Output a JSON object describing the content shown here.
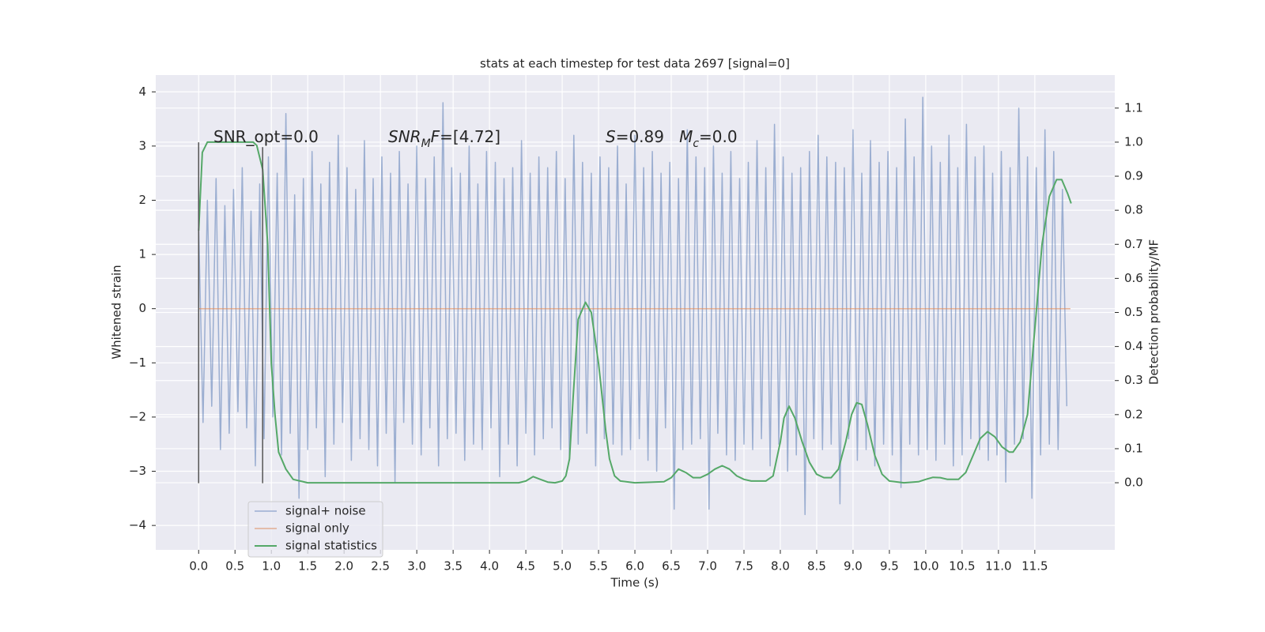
{
  "chart_data": {
    "type": "line",
    "title": "stats at each timestep for test data 2697 [signal=0]",
    "x_label": "Time (s)",
    "y_label": "Whitened strain",
    "y2_label": "Detection probability/MF",
    "xlim": [
      -0.59,
      12.6
    ],
    "ylim": [
      -4.45,
      4.31
    ],
    "y2lim": [
      -0.197,
      1.197
    ],
    "xticks": [
      {
        "value": 0,
        "label": "0.0"
      },
      0.5,
      {
        "value": 1,
        "label": "1.0"
      },
      1.5,
      {
        "value": 2,
        "label": "2.0"
      },
      2.5,
      {
        "value": 3,
        "label": "3.0"
      },
      3.5,
      {
        "value": 4,
        "label": "4.0"
      },
      4.5,
      {
        "value": 5,
        "label": "5.0"
      },
      5.5,
      {
        "value": 6,
        "label": "6.0"
      },
      6.5,
      {
        "value": 7,
        "label": "7.0"
      },
      7.5,
      {
        "value": 8,
        "label": "8.0"
      },
      8.5,
      {
        "value": 9,
        "label": "9.0"
      },
      9.5,
      {
        "value": 10,
        "label": "10.0"
      },
      10.5,
      {
        "value": 11,
        "label": "11.0"
      },
      11.5
    ],
    "yticks": [
      {
        "value": -4,
        "label": "−4"
      },
      {
        "value": -3,
        "label": "−3"
      },
      {
        "value": -2,
        "label": "−2"
      },
      {
        "value": -1,
        "label": "−1"
      },
      0,
      1,
      2,
      3,
      4
    ],
    "y2ticks": [
      {
        "value": 0,
        "label": "0.0"
      },
      0.1,
      0.2,
      0.3,
      0.4,
      0.5,
      0.6,
      0.7,
      0.8,
      0.9,
      {
        "value": 1,
        "label": "1.0"
      },
      1.1
    ],
    "grid": true,
    "legend": "lower left",
    "x": [
      0,
      0.06,
      0.12,
      0.18,
      0.24,
      0.3,
      0.36,
      0.42,
      0.48,
      0.54,
      0.6,
      0.66,
      0.72,
      0.78,
      0.84,
      0.9,
      0.96,
      1.02,
      1.08,
      1.14,
      1.2,
      1.26,
      1.32,
      1.38,
      1.44,
      1.5,
      1.56,
      1.62,
      1.68,
      1.74,
      1.8,
      1.86,
      1.92,
      1.98,
      2.04,
      2.1,
      2.16,
      2.22,
      2.28,
      2.34,
      2.4,
      2.46,
      2.52,
      2.58,
      2.64,
      2.7,
      2.76,
      2.82,
      2.88,
      2.94,
      3,
      3.06,
      3.12,
      3.18,
      3.24,
      3.3,
      3.36,
      3.42,
      3.48,
      3.54,
      3.6,
      3.66,
      3.72,
      3.78,
      3.84,
      3.9,
      3.96,
      4.02,
      4.08,
      4.14,
      4.2,
      4.26,
      4.32,
      4.38,
      4.44,
      4.5,
      4.56,
      4.62,
      4.68,
      4.74,
      4.8,
      4.86,
      4.92,
      4.98,
      5.04,
      5.1,
      5.16,
      5.22,
      5.28,
      5.34,
      5.4,
      5.46,
      5.52,
      5.58,
      5.64,
      5.7,
      5.76,
      5.82,
      5.88,
      5.94,
      6,
      6.06,
      6.12,
      6.18,
      6.24,
      6.3,
      6.36,
      6.42,
      6.48,
      6.54,
      6.6,
      6.66,
      6.72,
      6.78,
      6.84,
      6.9,
      6.96,
      7.02,
      7.08,
      7.14,
      7.2,
      7.26,
      7.32,
      7.38,
      7.44,
      7.5,
      7.56,
      7.62,
      7.68,
      7.74,
      7.8,
      7.86,
      7.92,
      7.98,
      8.04,
      8.1,
      8.16,
      8.22,
      8.28,
      8.34,
      8.4,
      8.46,
      8.52,
      8.58,
      8.64,
      8.7,
      8.76,
      8.82,
      8.88,
      8.94,
      9,
      9.06,
      9.12,
      9.18,
      9.24,
      9.3,
      9.36,
      9.42,
      9.48,
      9.54,
      9.6,
      9.66,
      9.72,
      9.78,
      9.84,
      9.9,
      9.96,
      10.02,
      10.08,
      10.14,
      10.2,
      10.26,
      10.32,
      10.38,
      10.44,
      10.5,
      10.56,
      10.62,
      10.68,
      10.74,
      10.8,
      10.86,
      10.92,
      10.98,
      11.04,
      11.1,
      11.16,
      11.22,
      11.28,
      11.34,
      11.4,
      11.46,
      11.52,
      11.58,
      11.64,
      11.7,
      11.76,
      11.82,
      11.88,
      11.94
    ],
    "series": [
      {
        "name": "signal+ noise",
        "color": "#4c72b0",
        "values": [
          1.5,
          -2.1,
          2.0,
          -1.8,
          2.4,
          -2.6,
          1.9,
          -2.3,
          2.2,
          -1.9,
          2.6,
          -2.2,
          1.8,
          -2.9,
          2.3,
          -2.4,
          2.8,
          -2.0,
          2.5,
          -2.7,
          3.6,
          -2.3,
          2.1,
          -3.5,
          2.4,
          -2.6,
          2.9,
          -2.2,
          2.3,
          -3.1,
          2.7,
          -2.5,
          3.2,
          -2.1,
          2.6,
          -2.8,
          2.2,
          -2.4,
          3.1,
          -2.6,
          2.4,
          -2.9,
          2.8,
          -2.3,
          2.5,
          -3.2,
          2.9,
          -2.1,
          2.3,
          -2.5,
          3.0,
          -2.7,
          2.4,
          -2.2,
          2.8,
          -2.9,
          3.8,
          -2.4,
          2.6,
          -2.3,
          2.5,
          -2.8,
          3.0,
          -2.5,
          2.3,
          -2.6,
          2.9,
          -2.2,
          2.7,
          -3.1,
          2.4,
          -2.5,
          2.6,
          -2.9,
          3.1,
          -2.3,
          2.5,
          -2.7,
          2.8,
          -2.4,
          2.6,
          -2.2,
          2.9,
          -2.6,
          2.4,
          -2.8,
          3.2,
          -2.5,
          2.7,
          -2.3,
          2.5,
          -2.9,
          2.8,
          -2.4,
          2.6,
          -2.5,
          3.0,
          -2.7,
          2.3,
          -2.6,
          3.2,
          -2.4,
          2.6,
          -2.8,
          2.9,
          -3.0,
          2.5,
          -2.2,
          2.7,
          -3.7,
          2.4,
          -2.6,
          3.3,
          -2.5,
          2.8,
          -2.4,
          2.6,
          -3.7,
          3.0,
          -2.3,
          2.5,
          -2.7,
          2.9,
          -2.8,
          2.4,
          -2.5,
          2.7,
          -2.6,
          3.1,
          -2.4,
          2.6,
          -2.9,
          3.4,
          -2.5,
          2.8,
          -3.0,
          2.5,
          -2.7,
          2.6,
          -3.8,
          2.9,
          -2.4,
          3.2,
          -2.6,
          2.8,
          -2.5,
          2.7,
          -3.6,
          2.6,
          -2.4,
          3.3,
          -2.8,
          2.5,
          -2.6,
          3.1,
          -2.9,
          2.7,
          -2.5,
          2.9,
          -2.7,
          2.6,
          -3.3,
          3.5,
          -2.5,
          2.8,
          -2.7,
          3.9,
          -2.6,
          3.0,
          -2.8,
          2.7,
          -2.5,
          3.2,
          -2.9,
          2.6,
          -2.7,
          3.4,
          -2.4,
          2.8,
          -2.6,
          3.0,
          -2.8,
          2.5,
          -2.7,
          2.9,
          -3.2,
          2.6,
          -2.5,
          3.7,
          -2.4,
          2.8,
          -3.5,
          2.6,
          -2.7,
          3.3,
          -2.5,
          2.9,
          -2.6,
          2.2,
          -1.8
        ]
      },
      {
        "name": "signal only",
        "color": "#dd8452",
        "x": [
          0,
          11.99
        ],
        "values": [
          0,
          0
        ]
      },
      {
        "name": "signal statistics",
        "color": "#55a868",
        "axis": "y2",
        "x": [
          0,
          0.05,
          0.12,
          0.25,
          0.5,
          0.75,
          0.8,
          0.88,
          0.95,
          1.0,
          1.05,
          1.1,
          1.2,
          1.3,
          1.5,
          2.0,
          3.0,
          4.0,
          4.4,
          4.5,
          4.6,
          4.7,
          4.8,
          4.9,
          5.0,
          5.05,
          5.1,
          5.15,
          5.22,
          5.32,
          5.4,
          5.5,
          5.6,
          5.65,
          5.72,
          5.8,
          6.0,
          6.4,
          6.5,
          6.6,
          6.7,
          6.8,
          6.9,
          7.0,
          7.1,
          7.2,
          7.3,
          7.4,
          7.5,
          7.6,
          7.8,
          7.9,
          8.0,
          8.05,
          8.12,
          8.2,
          8.3,
          8.4,
          8.5,
          8.6,
          8.7,
          8.8,
          8.9,
          8.98,
          9.05,
          9.12,
          9.2,
          9.3,
          9.4,
          9.5,
          9.7,
          9.9,
          10.0,
          10.1,
          10.2,
          10.3,
          10.45,
          10.55,
          10.65,
          10.75,
          10.85,
          10.95,
          11.05,
          11.15,
          11.2,
          11.3,
          11.4,
          11.5,
          11.6,
          11.7,
          11.8,
          11.87,
          11.95,
          12.0
        ],
        "values": [
          0.74,
          0.97,
          1.0,
          1.0,
          1.0,
          1.0,
          0.99,
          0.92,
          0.7,
          0.35,
          0.2,
          0.09,
          0.04,
          0.01,
          0.0,
          0.0,
          0.0,
          0.0,
          0.0,
          0.005,
          0.018,
          0.01,
          0.002,
          0.0,
          0.005,
          0.02,
          0.07,
          0.25,
          0.48,
          0.53,
          0.5,
          0.35,
          0.15,
          0.07,
          0.02,
          0.005,
          0.0,
          0.003,
          0.015,
          0.04,
          0.03,
          0.015,
          0.015,
          0.025,
          0.04,
          0.05,
          0.04,
          0.02,
          0.01,
          0.005,
          0.005,
          0.02,
          0.12,
          0.19,
          0.225,
          0.19,
          0.12,
          0.06,
          0.025,
          0.015,
          0.015,
          0.04,
          0.12,
          0.2,
          0.235,
          0.23,
          0.17,
          0.08,
          0.025,
          0.005,
          0.0,
          0.003,
          0.01,
          0.016,
          0.015,
          0.01,
          0.01,
          0.03,
          0.08,
          0.13,
          0.15,
          0.135,
          0.105,
          0.09,
          0.09,
          0.12,
          0.2,
          0.45,
          0.7,
          0.84,
          0.89,
          0.89,
          0.85,
          0.82
        ]
      }
    ],
    "vlines": [
      {
        "x": 0,
        "ymin": -3.22,
        "ymax": 3.07,
        "color": "#555555"
      },
      {
        "x": 0.88,
        "ymin": -3.22,
        "ymax": 2.98,
        "color": "#555555"
      }
    ],
    "annotations": [
      {
        "parts": [
          {
            "text": "SNR_opt=0.0"
          }
        ]
      },
      {
        "parts": [
          {
            "text": "SNR",
            "style": "italic"
          },
          {
            "text": "M",
            "style": "sub"
          },
          {
            "text": "F",
            "style": "italic"
          },
          {
            "text": "=[4.72]"
          }
        ]
      },
      {
        "parts": [
          {
            "text": "S",
            "style": "italic"
          },
          {
            "text": "=0.89   "
          },
          {
            "text": "M",
            "style": "italic"
          },
          {
            "text": "c",
            "style": "sub"
          },
          {
            "text": "=0.0"
          }
        ]
      }
    ]
  }
}
